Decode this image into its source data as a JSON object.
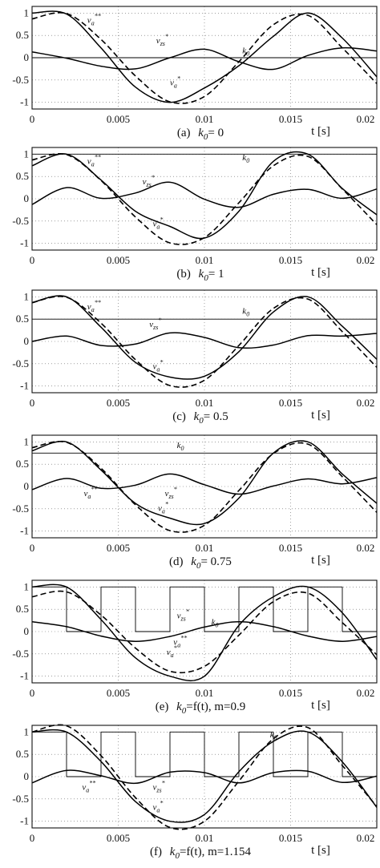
{
  "chart_data": [
    {
      "type": "line",
      "caption": {
        "label": "(a)",
        "k": "k",
        "sub": "0",
        "rest": "= 0"
      },
      "xlabel": "t  [s]",
      "xlim": [
        0,
        0.02
      ],
      "ylim": [
        -1.15,
        1.15
      ],
      "xticks": [
        "0",
        "0.005",
        "0.01",
        "0.015",
        "0.02"
      ],
      "yticks": [
        "1",
        "0.5",
        "0",
        "-0.5",
        "-1"
      ],
      "grid": true,
      "k0_mode": "const",
      "k0_value": 0,
      "m": 1.0,
      "series": [
        {
          "name": "v_a**",
          "style": "dashed",
          "x": [
            0,
            0.002,
            0.004,
            0.006,
            0.008,
            0.01,
            0.012,
            0.014,
            0.016,
            0.018,
            0.02
          ],
          "y": [
            0.87,
            0.99,
            0.41,
            -0.41,
            -0.99,
            -0.87,
            -0.09,
            0.74,
            0.95,
            0.22,
            -0.58
          ]
        },
        {
          "name": "v_zs*",
          "style": "solid",
          "x": [
            0,
            0.002,
            0.004,
            0.006,
            0.008,
            0.01,
            0.012,
            0.014,
            0.016,
            0.018,
            0.02
          ],
          "y": [
            0.13,
            -0.01,
            -0.19,
            -0.25,
            0,
            0.19,
            -0.09,
            -0.26,
            0.05,
            0.22,
            0.15
          ]
        },
        {
          "name": "v_a*",
          "style": "solid",
          "x": [
            0,
            0.002,
            0.004,
            0.006,
            0.008,
            0.01,
            0.012,
            0.014,
            0.016,
            0.018,
            0.02
          ],
          "y": [
            1,
            0.98,
            0.22,
            -0.66,
            -1,
            -0.68,
            -0.18,
            0.48,
            1,
            0.44,
            -0.43
          ]
        },
        {
          "name": "k_0",
          "style": "solid",
          "x": [
            0,
            0.02
          ],
          "y": [
            0,
            0
          ]
        }
      ],
      "annotations": [
        {
          "base": "v",
          "sub": "a",
          "sup": "**"
        },
        {
          "base": "v",
          "sub": "zs",
          "sup": "*"
        },
        {
          "base": "v",
          "sub": "a",
          "sup": "*"
        },
        {
          "base": "k",
          "sub": "0",
          "sup": ""
        }
      ]
    },
    {
      "type": "line",
      "caption": {
        "label": "(b)",
        "k": "k",
        "sub": "0",
        "rest": "= 1"
      },
      "xlabel": "t  [s]",
      "xlim": [
        0,
        0.02
      ],
      "ylim": [
        -1.15,
        1.15
      ],
      "xticks": [
        "0",
        "0.005",
        "0.01",
        "0.015",
        "0.02"
      ],
      "yticks": [
        "1",
        "0.5",
        "0",
        "-0.5",
        "-1"
      ],
      "grid": true,
      "k0_mode": "const",
      "k0_value": 1,
      "m": 1.0,
      "series": [
        {
          "name": "v_a**",
          "style": "dashed",
          "x": [
            0,
            0.002,
            0.004,
            0.006,
            0.008,
            0.01,
            0.012,
            0.014,
            0.016,
            0.018,
            0.02
          ],
          "y": [
            0.87,
            0.99,
            0.41,
            -0.41,
            -0.99,
            -0.87,
            -0.09,
            0.74,
            0.95,
            0.22,
            -0.58
          ]
        },
        {
          "name": "v_zs*",
          "style": "solid",
          "x": [
            0,
            0.002,
            0.004,
            0.006,
            0.008,
            0.01,
            0.012,
            0.014,
            0.016,
            0.018,
            0.02
          ],
          "y": [
            -0.13,
            0.25,
            0.01,
            0.13,
            0.37,
            -0.01,
            -0.19,
            0.1,
            0.21,
            0.01,
            0.22
          ]
        },
        {
          "name": "v_a*",
          "style": "solid",
          "x": [
            0,
            0.002,
            0.004,
            0.006,
            0.008,
            0.01,
            0.012,
            0.014,
            0.016,
            0.018,
            0.02
          ],
          "y": [
            0.74,
            1,
            0.42,
            -0.28,
            -0.62,
            -0.88,
            -0.28,
            0.84,
            1,
            0.23,
            -0.36
          ]
        },
        {
          "name": "k_0",
          "style": "solid",
          "x": [
            0,
            0.02
          ],
          "y": [
            1,
            1
          ]
        }
      ],
      "annotations": [
        {
          "base": "v",
          "sub": "a",
          "sup": "**"
        },
        {
          "base": "v",
          "sub": "zs",
          "sup": "*"
        },
        {
          "base": "v",
          "sub": "a",
          "sup": "*"
        },
        {
          "base": "k",
          "sub": "0",
          "sup": ""
        }
      ]
    },
    {
      "type": "line",
      "caption": {
        "label": "(c)",
        "k": "k",
        "sub": "0",
        "rest": "= 0.5"
      },
      "xlabel": "t  [s]",
      "xlim": [
        0,
        0.02
      ],
      "ylim": [
        -1.15,
        1.15
      ],
      "xticks": [
        "0",
        "0.005",
        "0.01",
        "0.015",
        "0.02"
      ],
      "yticks": [
        "1",
        "0.5",
        "0",
        "-0.5",
        "-1"
      ],
      "grid": true,
      "k0_mode": "const",
      "k0_value": 0.5,
      "m": 1.0,
      "series": [
        {
          "name": "v_a**",
          "style": "dashed",
          "x": [
            0,
            0.002,
            0.004,
            0.006,
            0.008,
            0.01,
            0.012,
            0.014,
            0.016,
            0.018,
            0.02
          ],
          "y": [
            0.87,
            0.99,
            0.41,
            -0.41,
            -0.99,
            -0.87,
            -0.09,
            0.74,
            0.95,
            0.22,
            -0.58
          ]
        },
        {
          "name": "v_zs*",
          "style": "solid",
          "x": [
            0,
            0.002,
            0.004,
            0.006,
            0.008,
            0.01,
            0.012,
            0.014,
            0.016,
            0.018,
            0.02
          ],
          "y": [
            0,
            0.12,
            -0.09,
            -0.06,
            0.19,
            0.09,
            -0.14,
            -0.08,
            0.13,
            0.12,
            0.18
          ]
        },
        {
          "name": "v_a*",
          "style": "solid",
          "x": [
            0,
            0.002,
            0.004,
            0.006,
            0.008,
            0.01,
            0.012,
            0.014,
            0.016,
            0.018,
            0.02
          ],
          "y": [
            0.87,
            1,
            0.32,
            -0.47,
            -0.8,
            -0.78,
            -0.23,
            0.66,
            1,
            0.34,
            -0.4
          ]
        },
        {
          "name": "k_0",
          "style": "solid",
          "x": [
            0,
            0.02
          ],
          "y": [
            0.5,
            0.5
          ]
        }
      ],
      "annotations": [
        {
          "base": "v",
          "sub": "a",
          "sup": "**"
        },
        {
          "base": "v",
          "sub": "zs",
          "sup": "*"
        },
        {
          "base": "v",
          "sub": "a",
          "sup": "*"
        },
        {
          "base": "k",
          "sub": "0",
          "sup": ""
        }
      ]
    },
    {
      "type": "line",
      "caption": {
        "label": "(d)",
        "k": "k",
        "sub": "0",
        "rest": "= 0.75"
      },
      "xlabel": "t  [s]",
      "xlim": [
        0,
        0.02
      ],
      "ylim": [
        -1.15,
        1.15
      ],
      "xticks": [
        "0",
        "0.005",
        "0.01",
        "0.015",
        "0.02"
      ],
      "yticks": [
        "1",
        "0.5",
        "0",
        "-0.5",
        "-1"
      ],
      "grid": true,
      "k0_mode": "const",
      "k0_value": 0.75,
      "m": 1.0,
      "series": [
        {
          "name": "v_a**",
          "style": "dashed",
          "x": [
            0,
            0.002,
            0.004,
            0.006,
            0.008,
            0.01,
            0.012,
            0.014,
            0.016,
            0.018,
            0.02
          ],
          "y": [
            0.87,
            0.99,
            0.41,
            -0.41,
            -0.99,
            -0.87,
            -0.09,
            0.74,
            0.95,
            0.22,
            -0.58
          ]
        },
        {
          "name": "v_zs*",
          "style": "solid",
          "x": [
            0,
            0.002,
            0.004,
            0.006,
            0.008,
            0.01,
            0.012,
            0.014,
            0.016,
            0.018,
            0.02
          ],
          "y": [
            -0.07,
            0.18,
            -0.04,
            0.03,
            0.28,
            0.04,
            -0.17,
            0.01,
            0.17,
            0.06,
            0.2
          ]
        },
        {
          "name": "v_a*",
          "style": "solid",
          "x": [
            0,
            0.002,
            0.004,
            0.006,
            0.008,
            0.01,
            0.012,
            0.014,
            0.016,
            0.018,
            0.02
          ],
          "y": [
            0.8,
            1,
            0.37,
            -0.38,
            -0.71,
            -0.83,
            -0.26,
            0.75,
            1,
            0.28,
            -0.38
          ]
        },
        {
          "name": "k_0",
          "style": "solid",
          "x": [
            0,
            0.02
          ],
          "y": [
            0.75,
            0.75
          ]
        }
      ],
      "annotations": [
        {
          "base": "v",
          "sub": "a",
          "sup": "**"
        },
        {
          "base": "v",
          "sub": "zs",
          "sup": "*"
        },
        {
          "base": "v",
          "sub": "a",
          "sup": "*"
        },
        {
          "base": "k",
          "sub": "0",
          "sup": ""
        }
      ]
    },
    {
      "type": "line",
      "caption": {
        "label": "(e)",
        "k": "k",
        "sub": "0",
        "rest": "=f(t), m=0.9"
      },
      "xlabel": "t  [s]",
      "xlim": [
        0,
        0.02
      ],
      "ylim": [
        -1.15,
        1.15
      ],
      "xticks": [
        "0",
        "0.005",
        "0.01",
        "0.015",
        "0.02"
      ],
      "yticks": [
        "1",
        "0.5",
        "0",
        "-0.5",
        "-1"
      ],
      "grid": true,
      "k0_mode": "switch",
      "k0_value": null,
      "m": 0.9,
      "series": [
        {
          "name": "v_a**",
          "style": "dashed",
          "x": [
            0,
            0.002,
            0.004,
            0.006,
            0.008,
            0.01,
            0.012,
            0.014,
            0.016,
            0.018,
            0.02
          ],
          "y": [
            0.78,
            0.89,
            0.37,
            -0.37,
            -0.89,
            -0.78,
            -0.08,
            0.67,
            0.86,
            0.2,
            -0.52
          ]
        },
        {
          "name": "v_zs*",
          "style": "solid",
          "x": [
            0,
            0.002,
            0.004,
            0.006,
            0.008,
            0.01,
            0.012,
            0.014,
            0.016,
            0.018,
            0.02
          ],
          "y": [
            0.22,
            0.11,
            -0.1,
            -0.22,
            -0.11,
            0.1,
            0.22,
            0.11,
            -0.1,
            -0.22,
            -0.11
          ]
        },
        {
          "name": "v_a*",
          "style": "solid",
          "x": [
            0,
            0.002,
            0.004,
            0.006,
            0.008,
            0.01,
            0.012,
            0.014,
            0.016,
            0.018,
            0.02
          ],
          "y": [
            1,
            1,
            0.27,
            -0.59,
            -1,
            -1,
            0.14,
            0.78,
            1,
            0.42,
            -0.63
          ]
        },
        {
          "name": "k_0",
          "style": "solid",
          "x": [
            0,
            0.002,
            0.004,
            0.006,
            0.008,
            0.01,
            0.012,
            0.014,
            0.016,
            0.018,
            0.02
          ],
          "y": [
            1,
            0,
            1,
            0,
            1,
            0,
            1,
            0,
            1,
            0,
            1
          ]
        }
      ],
      "annotations": [
        {
          "base": "v",
          "sub": "zs",
          "sup": "*"
        },
        {
          "base": "k",
          "sub": "0",
          "sup": ""
        },
        {
          "base": "v",
          "sub": "a",
          "sup": "**"
        },
        {
          "base": "v",
          "sub": "a",
          "sup": "*"
        }
      ]
    },
    {
      "type": "line",
      "caption": {
        "label": "(f)",
        "k": "k",
        "sub": "0",
        "rest": "=f(t), m=1.154"
      },
      "xlabel": "t  [s]",
      "xlim": [
        0,
        0.02
      ],
      "ylim": [
        -1.15,
        1.15
      ],
      "xticks": [
        "0",
        "0.005",
        "0.01",
        "0.015",
        "0.02"
      ],
      "yticks": [
        "1",
        "0.5",
        "0",
        "-0.5",
        "-1"
      ],
      "grid": true,
      "k0_mode": "switch",
      "k0_value": null,
      "m": 1.154,
      "series": [
        {
          "name": "v_a**",
          "style": "dashed",
          "x": [
            0,
            0.002,
            0.004,
            0.006,
            0.008,
            0.01,
            0.012,
            0.014,
            0.016,
            0.018,
            0.02
          ],
          "y": [
            1,
            1.14,
            0.47,
            -0.47,
            -1.14,
            -1,
            -0.1,
            0.85,
            1.1,
            0.25,
            -0.67
          ]
        },
        {
          "name": "v_zs*",
          "style": "solid",
          "x": [
            0,
            0.002,
            0.004,
            0.006,
            0.008,
            0.01,
            0.012,
            0.014,
            0.016,
            0.018,
            0.02
          ],
          "y": [
            -0.14,
            0.14,
            0.02,
            -0.15,
            0.1,
            0.09,
            -0.14,
            0.09,
            0.12,
            -0.13,
            0.01
          ]
        },
        {
          "name": "v_a*",
          "style": "solid",
          "x": [
            0,
            0.002,
            0.004,
            0.006,
            0.008,
            0.01,
            0.012,
            0.014,
            0.016,
            0.018,
            0.02
          ],
          "y": [
            1,
            1,
            0.34,
            -0.56,
            -1,
            -0.85,
            0.11,
            0.79,
            1,
            0.33,
            -0.69
          ]
        },
        {
          "name": "k_0",
          "style": "solid",
          "x": [
            0,
            0.002,
            0.004,
            0.006,
            0.008,
            0.01,
            0.012,
            0.014,
            0.016,
            0.018,
            0.02
          ],
          "y": [
            1,
            0,
            1,
            0,
            1,
            0,
            1,
            0,
            1,
            0,
            1
          ]
        }
      ],
      "annotations": [
        {
          "base": "k",
          "sub": "0",
          "sup": ""
        },
        {
          "base": "v",
          "sub": "a",
          "sup": "**"
        },
        {
          "base": "v",
          "sub": "zs",
          "sup": "*"
        },
        {
          "base": "v",
          "sub": "a",
          "sup": "*"
        }
      ]
    }
  ]
}
